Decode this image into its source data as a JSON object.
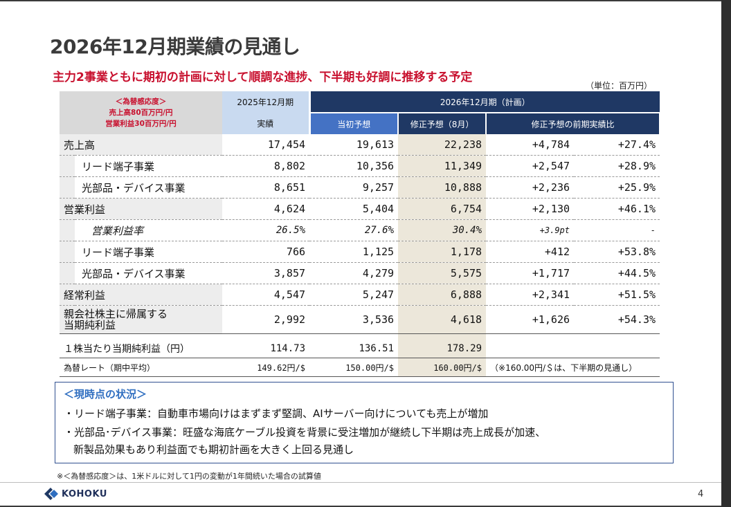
{
  "title": "2026年12月期業績の見通し",
  "subtitle": "主力2事業ともに期初の計画に対して順調な進捗、下半期も好調に推移する予定",
  "unit": "（単位：百万円）",
  "table": {
    "fx_sensitivity": {
      "title": "＜為替感応度＞",
      "line1": "売上高80百万円/円",
      "line2": "営業利益30百万円/円"
    },
    "header": {
      "fy2025": "2025年12月期",
      "fy2026": "2026年12月期（計画）",
      "actual": "実績",
      "initial": "当初予想",
      "revised": "修正予想（8月）",
      "compare": "修正予想の前期実績比"
    },
    "rows": [
      {
        "label": "売上高",
        "actual": "17,454",
        "initial": "19,613",
        "revised": "22,238",
        "diff": "+4,784",
        "pct": "+27.4%"
      },
      {
        "label": "リード端子事業",
        "actual": "8,802",
        "initial": "10,356",
        "revised": "11,349",
        "diff": "+2,547",
        "pct": "+28.9%"
      },
      {
        "label": "光部品・デバイス事業",
        "actual": "8,651",
        "initial": "9,257",
        "revised": "10,888",
        "diff": "+2,236",
        "pct": "+25.9%"
      },
      {
        "label": "営業利益",
        "actual": "4,624",
        "initial": "5,404",
        "revised": "6,754",
        "diff": "+2,130",
        "pct": "+46.1%"
      },
      {
        "label": "営業利益率",
        "actual": "26.5%",
        "initial": "27.6%",
        "revised": "30.4%",
        "diff": "+3.9pt",
        "pct": "-"
      },
      {
        "label": "リード端子事業",
        "actual": "766",
        "initial": "1,125",
        "revised": "1,178",
        "diff": "+412",
        "pct": "+53.8%"
      },
      {
        "label": "光部品・デバイス事業",
        "actual": "3,857",
        "initial": "4,279",
        "revised": "5,575",
        "diff": "+1,717",
        "pct": "+44.5%"
      },
      {
        "label": "経常利益",
        "actual": "4,547",
        "initial": "5,247",
        "revised": "6,888",
        "diff": "+2,341",
        "pct": "+51.5%"
      },
      {
        "label_line1": "親会社株主に帰属する",
        "label_line2": "当期純利益",
        "actual": "2,992",
        "initial": "3,536",
        "revised": "4,618",
        "diff": "+1,626",
        "pct": "+54.3%"
      }
    ],
    "eps": {
      "label": "１株当たり当期純利益（円）",
      "actual": "114.73",
      "initial": "136.51",
      "revised": "178.29"
    },
    "fx": {
      "label": "為替レート（期中平均）",
      "actual": "149.62円/$",
      "initial": "150.00円/$",
      "revised": "160.00円/$",
      "note": "（※160.00円/＄は、下半期の見通し）"
    }
  },
  "status": {
    "title": "＜現時点の状況＞",
    "line1": "・リード端子事業：自動車市場向けはまずまず堅調、AIサーバー向けについても売上が増加",
    "line2": "・光部品･デバイス事業：旺盛な海底ケーブル投資を背景に受注増加が継続し下半期は売上成長が加速、",
    "line3": "新製品効果もあり利益面でも期初計画を大きく上回る見通し"
  },
  "footnote": "※＜為替感応度＞は、1米ドルに対して1円の変動が1年間続いた場合の試算値",
  "logo_text": "KOHOKU",
  "page_number": "4",
  "colors": {
    "accent_red": "#c8102e",
    "navy": "#1f3864",
    "blue": "#4472c4",
    "light_blue": "#c9daf0"
  }
}
